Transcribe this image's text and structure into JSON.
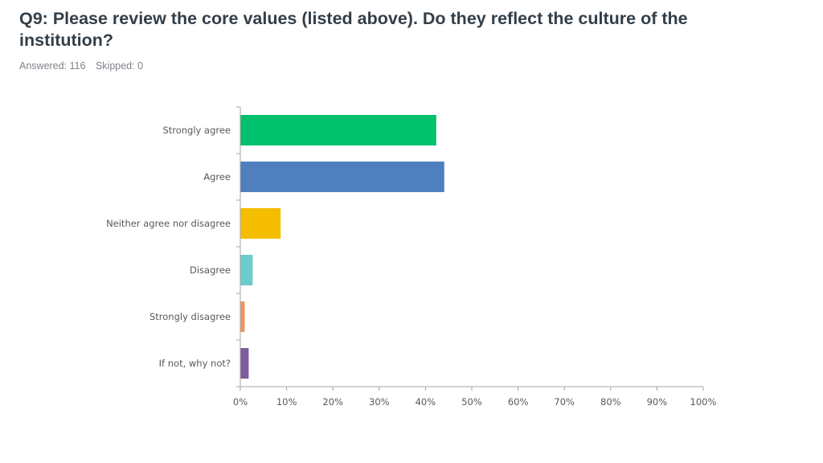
{
  "question": {
    "title": "Q9: Please review the core values (listed above). Do they reflect the culture of the institution?",
    "answered": "Answered: 116",
    "skipped": "Skipped: 0"
  },
  "chart_data": {
    "type": "bar",
    "orientation": "horizontal",
    "categories": [
      "Strongly agree",
      "Agree",
      "Neither agree nor disagree",
      "Disagree",
      "Strongly disagree",
      "If not, why not?"
    ],
    "values": [
      42.24,
      43.97,
      8.62,
      2.59,
      0.86,
      1.72
    ],
    "colors": [
      "#00c16e",
      "#4f7fbf",
      "#f5bd00",
      "#6ccbcb",
      "#f0945f",
      "#7d5c9c"
    ],
    "xlim": [
      0,
      100
    ],
    "xticks": [
      "0%",
      "10%",
      "20%",
      "30%",
      "40%",
      "50%",
      "60%",
      "70%",
      "80%",
      "90%",
      "100%"
    ],
    "title": "",
    "xlabel": "",
    "ylabel": "",
    "grid": false
  }
}
